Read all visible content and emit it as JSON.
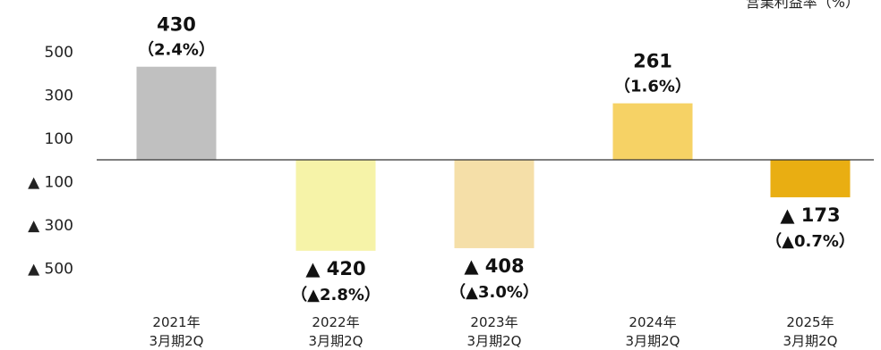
{
  "chart_data": {
    "type": "bar",
    "subtitle": "営業利益率（%）",
    "categories": [
      [
        "2021年",
        "3月期2Q"
      ],
      [
        "2022年",
        "3月期2Q"
      ],
      [
        "2023年",
        "3月期2Q"
      ],
      [
        "2024年",
        "3月期2Q"
      ],
      [
        "2025年",
        "3月期2Q"
      ]
    ],
    "values": [
      430,
      -420,
      -408,
      261,
      -173
    ],
    "value_labels": [
      "430",
      "▲ 420",
      "▲ 408",
      "261",
      "▲ 173"
    ],
    "margin_labels": [
      "（2.4%）",
      "（▲2.8%）",
      "（▲3.0%）",
      "（1.6%）",
      "（▲0.7%）"
    ],
    "colors": [
      "#C0C0C0",
      "#F6F3A8",
      "#F5DFA8",
      "#F6D265",
      "#E9AE12"
    ],
    "y_ticks": [
      500,
      300,
      100,
      -100,
      -300,
      -500
    ],
    "y_tick_labels": [
      "500",
      "300",
      "100",
      "▲ 100",
      "▲ 300",
      "▲ 500"
    ],
    "ylim": [
      -600,
      700
    ],
    "grid": false,
    "legend": "none"
  }
}
